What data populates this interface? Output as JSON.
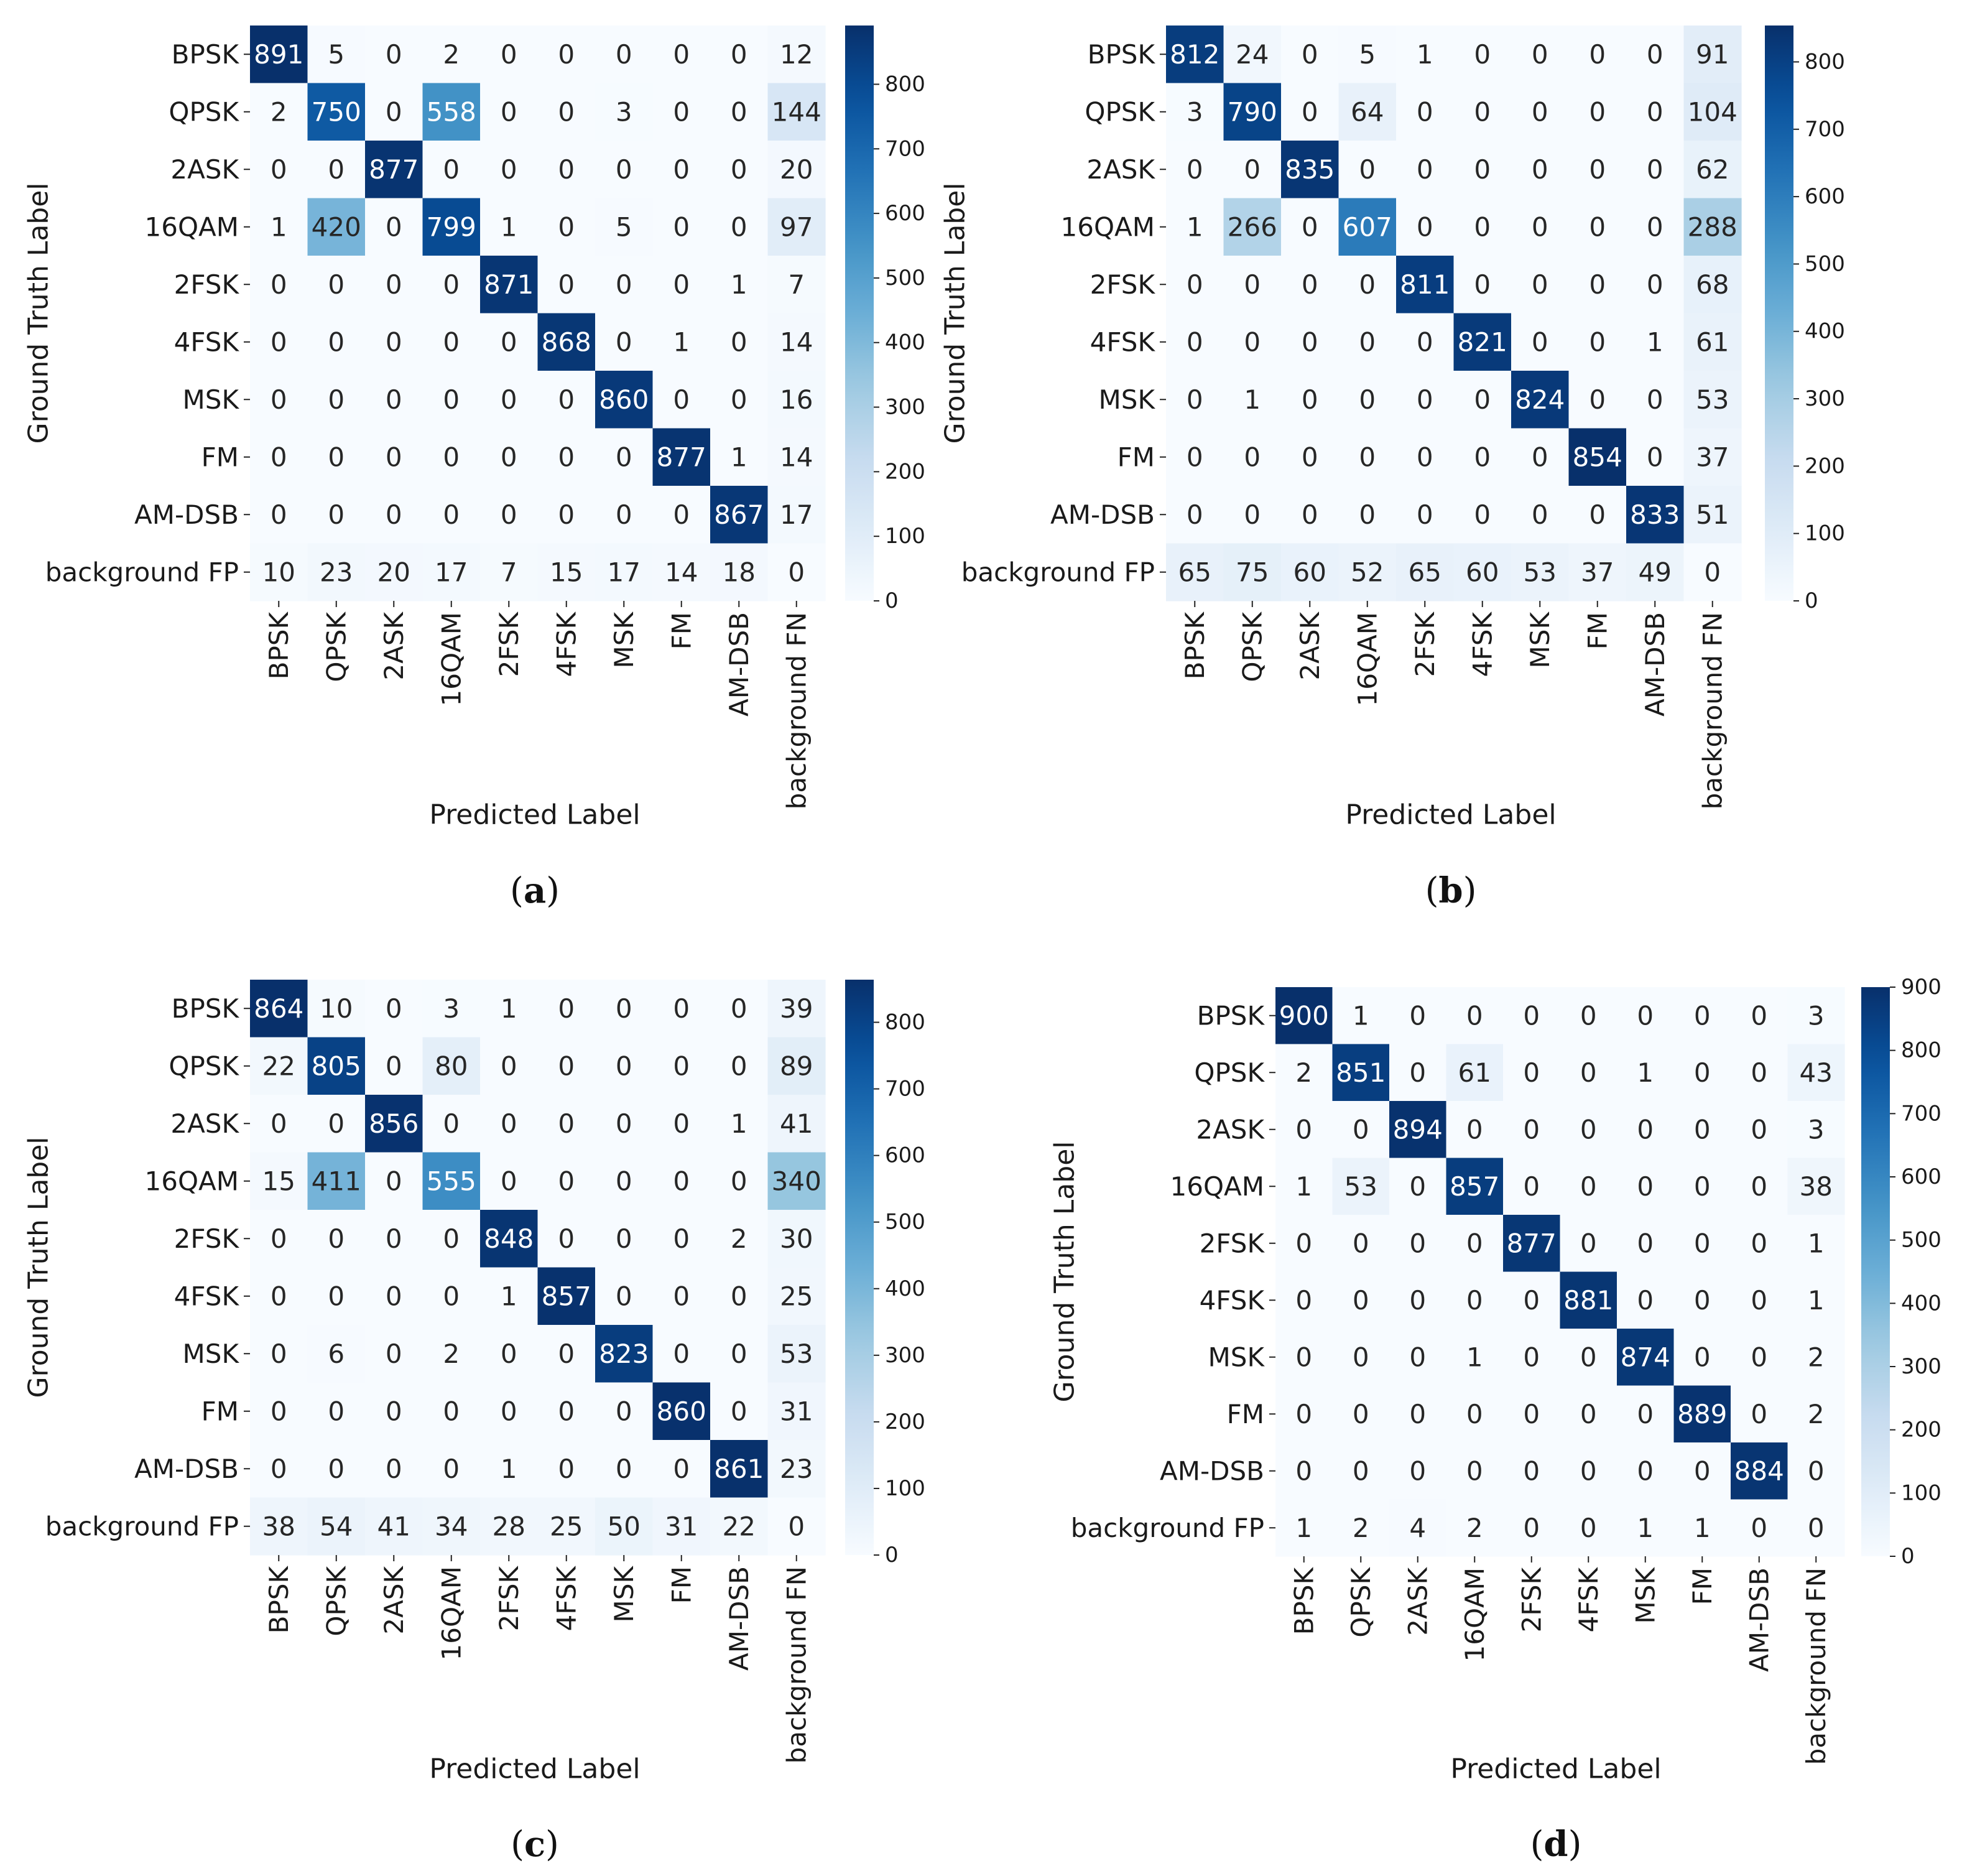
{
  "chart_data": [
    {
      "type": "heatmap",
      "panel_label": "(a)",
      "xlabel": "Predicted Label",
      "ylabel": "Ground Truth Label",
      "x_categories": [
        "BPSK",
        "QPSK",
        "2ASK",
        "16QAM",
        "2FSK",
        "4FSK",
        "MSK",
        "FM",
        "AM-DSB",
        "background FN"
      ],
      "y_categories": [
        "BPSK",
        "QPSK",
        "2ASK",
        "16QAM",
        "2FSK",
        "4FSK",
        "MSK",
        "FM",
        "AM-DSB",
        "background FP"
      ],
      "values": [
        [
          891,
          5,
          0,
          2,
          0,
          0,
          0,
          0,
          0,
          12
        ],
        [
          2,
          750,
          0,
          558,
          0,
          0,
          3,
          0,
          0,
          144
        ],
        [
          0,
          0,
          877,
          0,
          0,
          0,
          0,
          0,
          0,
          20
        ],
        [
          1,
          420,
          0,
          799,
          1,
          0,
          5,
          0,
          0,
          97
        ],
        [
          0,
          0,
          0,
          0,
          871,
          0,
          0,
          0,
          1,
          7
        ],
        [
          0,
          0,
          0,
          0,
          0,
          868,
          0,
          1,
          0,
          14
        ],
        [
          0,
          0,
          0,
          0,
          0,
          0,
          860,
          0,
          0,
          16
        ],
        [
          0,
          0,
          0,
          0,
          0,
          0,
          0,
          877,
          1,
          14
        ],
        [
          0,
          0,
          0,
          0,
          0,
          0,
          0,
          0,
          867,
          17
        ],
        [
          10,
          23,
          20,
          17,
          7,
          15,
          17,
          14,
          18,
          0
        ]
      ],
      "colorbar": {
        "min": 0,
        "max": 891,
        "ticks": [
          0,
          100,
          200,
          300,
          400,
          500,
          600,
          700,
          800
        ]
      },
      "colormap": "Blues"
    },
    {
      "type": "heatmap",
      "panel_label": "(b)",
      "xlabel": "Predicted Label",
      "ylabel": "Ground Truth Label",
      "x_categories": [
        "BPSK",
        "QPSK",
        "2ASK",
        "16QAM",
        "2FSK",
        "4FSK",
        "MSK",
        "FM",
        "AM-DSB",
        "background FN"
      ],
      "y_categories": [
        "BPSK",
        "QPSK",
        "2ASK",
        "16QAM",
        "2FSK",
        "4FSK",
        "MSK",
        "FM",
        "AM-DSB",
        "background FP"
      ],
      "values": [
        [
          812,
          24,
          0,
          5,
          1,
          0,
          0,
          0,
          0,
          91
        ],
        [
          3,
          790,
          0,
          64,
          0,
          0,
          0,
          0,
          0,
          104
        ],
        [
          0,
          0,
          835,
          0,
          0,
          0,
          0,
          0,
          0,
          62
        ],
        [
          1,
          266,
          0,
          607,
          0,
          0,
          0,
          0,
          0,
          288
        ],
        [
          0,
          0,
          0,
          0,
          811,
          0,
          0,
          0,
          0,
          68
        ],
        [
          0,
          0,
          0,
          0,
          0,
          821,
          0,
          0,
          1,
          61
        ],
        [
          0,
          1,
          0,
          0,
          0,
          0,
          824,
          0,
          0,
          53
        ],
        [
          0,
          0,
          0,
          0,
          0,
          0,
          0,
          854,
          0,
          37
        ],
        [
          0,
          0,
          0,
          0,
          0,
          0,
          0,
          0,
          833,
          51
        ],
        [
          65,
          75,
          60,
          52,
          65,
          60,
          53,
          37,
          49,
          0
        ]
      ],
      "colorbar": {
        "min": 0,
        "max": 854,
        "ticks": [
          0,
          100,
          200,
          300,
          400,
          500,
          600,
          700,
          800
        ]
      },
      "colormap": "Blues"
    },
    {
      "type": "heatmap",
      "panel_label": "(c)",
      "xlabel": "Predicted Label",
      "ylabel": "Ground Truth Label",
      "x_categories": [
        "BPSK",
        "QPSK",
        "2ASK",
        "16QAM",
        "2FSK",
        "4FSK",
        "MSK",
        "FM",
        "AM-DSB",
        "background FN"
      ],
      "y_categories": [
        "BPSK",
        "QPSK",
        "2ASK",
        "16QAM",
        "2FSK",
        "4FSK",
        "MSK",
        "FM",
        "AM-DSB",
        "background FP"
      ],
      "values": [
        [
          864,
          10,
          0,
          3,
          1,
          0,
          0,
          0,
          0,
          39
        ],
        [
          22,
          805,
          0,
          80,
          0,
          0,
          0,
          0,
          0,
          89
        ],
        [
          0,
          0,
          856,
          0,
          0,
          0,
          0,
          0,
          1,
          41
        ],
        [
          15,
          411,
          0,
          555,
          0,
          0,
          0,
          0,
          0,
          340
        ],
        [
          0,
          0,
          0,
          0,
          848,
          0,
          0,
          0,
          2,
          30
        ],
        [
          0,
          0,
          0,
          0,
          1,
          857,
          0,
          0,
          0,
          25
        ],
        [
          0,
          6,
          0,
          2,
          0,
          0,
          823,
          0,
          0,
          53
        ],
        [
          0,
          0,
          0,
          0,
          0,
          0,
          0,
          860,
          0,
          31
        ],
        [
          0,
          0,
          0,
          0,
          1,
          0,
          0,
          0,
          861,
          23
        ],
        [
          38,
          54,
          41,
          34,
          28,
          25,
          50,
          31,
          22,
          0
        ]
      ],
      "colorbar": {
        "min": 0,
        "max": 864,
        "ticks": [
          0,
          100,
          200,
          300,
          400,
          500,
          600,
          700,
          800
        ]
      },
      "colormap": "Blues"
    },
    {
      "type": "heatmap",
      "panel_label": "(d)",
      "xlabel": "Predicted Label",
      "ylabel": "Ground Truth Label",
      "x_categories": [
        "BPSK",
        "QPSK",
        "2ASK",
        "16QAM",
        "2FSK",
        "4FSK",
        "MSK",
        "FM",
        "AM-DSB",
        "background FN"
      ],
      "y_categories": [
        "BPSK",
        "QPSK",
        "2ASK",
        "16QAM",
        "2FSK",
        "4FSK",
        "MSK",
        "FM",
        "AM-DSB",
        "background FP"
      ],
      "values": [
        [
          900,
          1,
          0,
          0,
          0,
          0,
          0,
          0,
          0,
          3
        ],
        [
          2,
          851,
          0,
          61,
          0,
          0,
          1,
          0,
          0,
          43
        ],
        [
          0,
          0,
          894,
          0,
          0,
          0,
          0,
          0,
          0,
          3
        ],
        [
          1,
          53,
          0,
          857,
          0,
          0,
          0,
          0,
          0,
          38
        ],
        [
          0,
          0,
          0,
          0,
          877,
          0,
          0,
          0,
          0,
          1
        ],
        [
          0,
          0,
          0,
          0,
          0,
          881,
          0,
          0,
          0,
          1
        ],
        [
          0,
          0,
          0,
          1,
          0,
          0,
          874,
          0,
          0,
          2
        ],
        [
          0,
          0,
          0,
          0,
          0,
          0,
          0,
          889,
          0,
          2
        ],
        [
          0,
          0,
          0,
          0,
          0,
          0,
          0,
          0,
          884,
          0
        ],
        [
          1,
          2,
          4,
          2,
          0,
          0,
          1,
          1,
          0,
          0
        ]
      ],
      "colorbar": {
        "min": 0,
        "max": 900,
        "ticks": [
          0,
          100,
          200,
          300,
          400,
          500,
          600,
          700,
          800,
          900
        ]
      },
      "colormap": "Blues"
    }
  ]
}
